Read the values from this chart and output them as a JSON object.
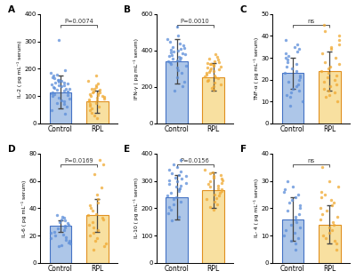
{
  "panels": [
    {
      "label": "A",
      "ylabel": "IL-2 ( pg mL⁻¹ serum)",
      "ylim": [
        0,
        400
      ],
      "yticks": [
        0,
        100,
        200,
        300,
        400
      ],
      "pvalue": "P=0.0074",
      "control_bar": 115,
      "rpl_bar": 80,
      "control_err": 60,
      "rpl_err": 40,
      "control_dots": [
        305,
        195,
        185,
        180,
        175,
        170,
        165,
        160,
        158,
        155,
        152,
        150,
        148,
        145,
        143,
        140,
        138,
        135,
        132,
        130,
        128,
        125,
        122,
        120,
        118,
        115,
        112,
        110,
        108,
        105,
        100,
        95,
        90,
        85,
        80,
        75,
        70,
        60,
        50,
        35
      ],
      "rpl_dots": [
        175,
        155,
        145,
        138,
        132,
        128,
        125,
        122,
        118,
        115,
        112,
        110,
        108,
        105,
        102,
        100,
        98,
        95,
        90,
        88,
        85,
        80,
        75,
        70,
        65,
        60,
        55,
        48,
        40,
        30,
        20
      ]
    },
    {
      "label": "B",
      "ylabel": "IFN-γ ( pg mL⁻¹ serum)",
      "ylim": [
        0,
        600
      ],
      "yticks": [
        0,
        200,
        400,
        600
      ],
      "pvalue": "P=0.0010",
      "control_bar": 340,
      "rpl_bar": 255,
      "control_err": 120,
      "rpl_err": 75,
      "control_dots": [
        530,
        480,
        460,
        450,
        440,
        430,
        420,
        415,
        410,
        405,
        400,
        395,
        390,
        385,
        380,
        375,
        370,
        365,
        360,
        355,
        350,
        345,
        340,
        335,
        325,
        315,
        305,
        290,
        275,
        255,
        230,
        205,
        180
      ],
      "rpl_dots": [
        380,
        365,
        355,
        348,
        342,
        338,
        332,
        328,
        325,
        320,
        315,
        310,
        305,
        300,
        295,
        290,
        285,
        280,
        275,
        270,
        265,
        260,
        255,
        248,
        240,
        232,
        225,
        215,
        205,
        195,
        185
      ]
    },
    {
      "label": "C",
      "ylabel": "TNF-α ( pg mL⁻¹ serum)",
      "ylim": [
        0,
        50
      ],
      "yticks": [
        0,
        10,
        20,
        30,
        40,
        50
      ],
      "pvalue": "ns",
      "control_bar": 23,
      "rpl_bar": 24,
      "control_err": 7,
      "rpl_err": 9,
      "control_dots": [
        38,
        36,
        35,
        34,
        33,
        32,
        31,
        30,
        29,
        28,
        27,
        26,
        25,
        24,
        23,
        22,
        21,
        20,
        19,
        18,
        17,
        16,
        15,
        14,
        13,
        12,
        10,
        8
      ],
      "rpl_dots": [
        45,
        42,
        40,
        38,
        36,
        35,
        34,
        32,
        30,
        28,
        27,
        26,
        25,
        24,
        23,
        22,
        21,
        20,
        19,
        18,
        17,
        16,
        15,
        14,
        13,
        12,
        10
      ]
    },
    {
      "label": "D",
      "ylabel": "IL-6 ( pg mL⁻¹ serum)",
      "ylim": [
        0,
        80
      ],
      "yticks": [
        0,
        20,
        40,
        60,
        80
      ],
      "pvalue": "P=0.0169",
      "control_bar": 27,
      "rpl_bar": 35,
      "control_err": 4,
      "rpl_err": 12,
      "control_dots": [
        35,
        34,
        33,
        32,
        31,
        30,
        29,
        28,
        27,
        26,
        25,
        24,
        23,
        22,
        21,
        20,
        19,
        18,
        17,
        16,
        15,
        14,
        13,
        12
      ],
      "rpl_dots": [
        75,
        72,
        65,
        55,
        50,
        47,
        44,
        42,
        40,
        38,
        36,
        35,
        33,
        32,
        30,
        28,
        26,
        24,
        22,
        20,
        18,
        16,
        14,
        12,
        10
      ]
    },
    {
      "label": "E",
      "ylabel": "IL-10 ( pg mL⁻¹ serum)",
      "ylim": [
        0,
        400
      ],
      "yticks": [
        0,
        100,
        200,
        300,
        400
      ],
      "pvalue": "P=0.0156",
      "control_bar": 240,
      "rpl_bar": 265,
      "control_err": 80,
      "rpl_err": 65,
      "control_dots": [
        375,
        360,
        350,
        340,
        335,
        328,
        322,
        318,
        312,
        308,
        302,
        298,
        292,
        288,
        282,
        278,
        272,
        268,
        262,
        255,
        248,
        240,
        232,
        225,
        215,
        205,
        195,
        182,
        170,
        155
      ],
      "rpl_dots": [
        340,
        332,
        328,
        322,
        318,
        312,
        308,
        302,
        298,
        292,
        288,
        282,
        278,
        272,
        268,
        262,
        255,
        250,
        245,
        238,
        232,
        225,
        215,
        205,
        195
      ]
    },
    {
      "label": "F",
      "ylabel": "IL- 4 ( pg mL⁻¹ serum)",
      "ylim": [
        0,
        40
      ],
      "yticks": [
        0,
        10,
        20,
        30,
        40
      ],
      "pvalue": "ns",
      "control_bar": 16,
      "rpl_bar": 14,
      "control_err": 8,
      "rpl_err": 7,
      "control_dots": [
        30,
        28,
        27,
        26,
        25,
        24,
        23,
        22,
        21,
        20,
        19,
        18,
        17,
        16,
        15,
        14,
        13,
        12,
        11,
        10,
        9,
        8,
        7,
        5
      ],
      "rpl_dots": [
        35,
        30,
        28,
        26,
        25,
        24,
        23,
        22,
        21,
        20,
        19,
        18,
        17,
        16,
        15,
        14,
        13,
        12,
        11,
        10,
        9,
        8,
        7,
        5
      ]
    }
  ],
  "control_color": "#5b8dd9",
  "rpl_color": "#f0a830",
  "control_bar_color": "#adc6e8",
  "rpl_bar_color": "#f8e0a0",
  "control_edge_color": "#4472c4",
  "rpl_edge_color": "#e09020",
  "dot_alpha": 0.75,
  "dot_size": 6,
  "bar_width": 0.6
}
